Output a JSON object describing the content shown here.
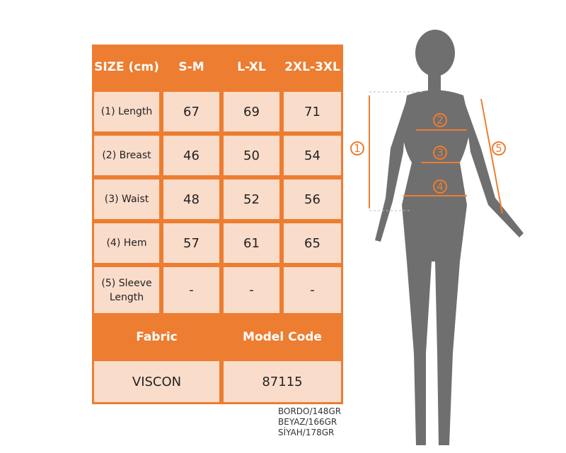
{
  "table": {
    "header": [
      "SIZE (cm)",
      "S-M",
      "L-XL",
      "2XL-3XL"
    ],
    "rows": [
      {
        "label": "(1) Length",
        "values": [
          "67",
          "69",
          "71"
        ]
      },
      {
        "label": "(2) Breast",
        "values": [
          "46",
          "50",
          "54"
        ]
      },
      {
        "label": "(3) Waist",
        "values": [
          "48",
          "52",
          "56"
        ]
      },
      {
        "label": "(4) Hem",
        "values": [
          "57",
          "61",
          "65"
        ]
      },
      {
        "label": "(5) Sleeve Length",
        "values": [
          "-",
          "-",
          "-"
        ]
      }
    ],
    "fabric_label": "Fabric",
    "model_code_label": "Model Code",
    "fabric": "VISCON",
    "model_code": "87115"
  },
  "colors_weights": [
    "BORDO/148GR",
    "BEYAZ/166GR",
    "SİYAH/178GR"
  ],
  "figure": {
    "markers": [
      "1",
      "2",
      "3",
      "4",
      "5"
    ]
  },
  "accent": "#ED7D31",
  "cell_color": "#FADCCB"
}
